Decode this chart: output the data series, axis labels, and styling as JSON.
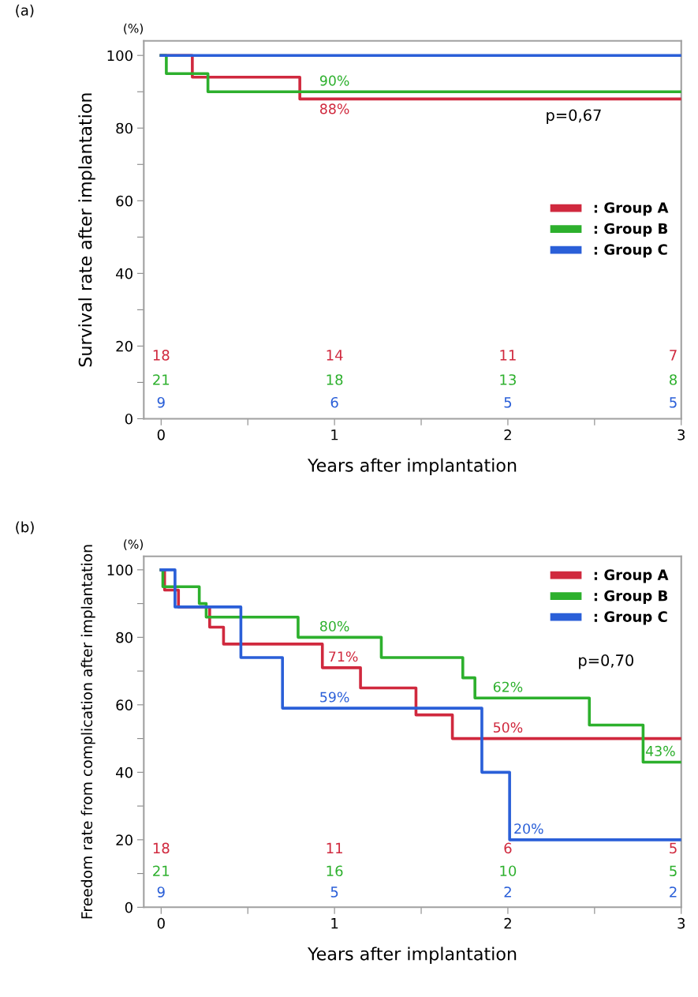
{
  "chart_data": [
    {
      "type": "step",
      "title": "(a)",
      "xlabel": "Years after implantation",
      "ylabel": "Survival rate after implantation",
      "xlim": [
        -0.1,
        3.0
      ],
      "ylim": [
        0,
        104
      ],
      "xticks": [
        0,
        {
          "value": 0.5,
          "label": null
        },
        1,
        {
          "value": 1.5,
          "label": null
        },
        2,
        {
          "value": 2.5,
          "label": null
        },
        3
      ],
      "yticks": [
        0,
        {
          "value": 10,
          "label": null
        },
        20,
        {
          "value": 30,
          "label": null
        },
        40,
        {
          "value": 50,
          "label": null
        },
        60,
        {
          "value": 70,
          "label": null
        },
        80,
        {
          "value": 90,
          "label": null
        },
        100
      ],
      "legend": "center right",
      "grid": false,
      "marker": "none",
      "line_style": "solid",
      "series": [
        {
          "name": ": Group A",
          "color": "#d0293e",
          "x": [
            0,
            0.18,
            0.8,
            1,
            3.0
          ],
          "values": [
            100,
            94,
            88,
            88,
            88
          ],
          "value_labels": [
            null,
            null,
            null,
            "88%",
            null
          ]
        },
        {
          "name": ": Group B",
          "color": "#2db02d",
          "x": [
            0,
            0.03,
            0.27,
            1,
            3.0
          ],
          "values": [
            100,
            95,
            90,
            90,
            90
          ],
          "value_labels": [
            null,
            null,
            null,
            "90%",
            null
          ]
        },
        {
          "name": ": Group C",
          "color": "#2a5fd8",
          "x": [
            0,
            3.0
          ],
          "values": [
            100,
            100
          ],
          "value_labels": [
            null,
            null
          ]
        }
      ],
      "annotations": [
        "(%)",
        "p=0,67",
        "18",
        "14",
        "11",
        "7",
        "21",
        "18",
        "13",
        "8",
        "9",
        "6",
        "5",
        "5"
      ]
    },
    {
      "type": "step",
      "title": "(b)",
      "xlabel": "Years after implantation",
      "ylabel": "Freedom rate from complication after implantation",
      "xlim": [
        -0.1,
        3.0
      ],
      "ylim": [
        0,
        104
      ],
      "xticks": [
        0,
        {
          "value": 0.5,
          "label": null
        },
        1,
        {
          "value": 1.5,
          "label": null
        },
        2,
        {
          "value": 2.5,
          "label": null
        },
        3
      ],
      "yticks": [
        0,
        {
          "value": 10,
          "label": null
        },
        20,
        {
          "value": 30,
          "label": null
        },
        40,
        {
          "value": 50,
          "label": null
        },
        60,
        {
          "value": 70,
          "label": null
        },
        80,
        {
          "value": 90,
          "label": null
        },
        100
      ],
      "legend": "top right",
      "grid": false,
      "marker": "none",
      "line_style": "solid",
      "series": [
        {
          "name": ": Group A",
          "color": "#d0293e",
          "x": [
            0,
            0.02,
            0.1,
            0.28,
            0.36,
            0.93,
            1.05,
            1.15,
            1.47,
            1.68,
            2,
            3.0
          ],
          "values": [
            100,
            94,
            89,
            83,
            78,
            71,
            71,
            65,
            57,
            50,
            50,
            50
          ],
          "value_labels": [
            null,
            null,
            null,
            null,
            null,
            null,
            "71%",
            null,
            null,
            null,
            "50%",
            null
          ]
        },
        {
          "name": ": Group B",
          "color": "#2db02d",
          "x": [
            0,
            0.01,
            0.22,
            0.26,
            0.79,
            1,
            1.27,
            1.74,
            1.81,
            2,
            2.47,
            2.78,
            2.88,
            3.0
          ],
          "values": [
            100,
            95,
            90,
            86,
            80,
            80,
            74,
            68,
            62,
            62,
            54,
            43,
            43,
            43
          ],
          "value_labels": [
            null,
            null,
            null,
            null,
            null,
            "80%",
            null,
            null,
            null,
            "62%",
            null,
            null,
            "43%",
            null
          ]
        },
        {
          "name": ": Group C",
          "color": "#2a5fd8",
          "x": [
            0,
            0.08,
            0.46,
            0.7,
            1,
            1.85,
            2.01,
            2.12,
            3.0
          ],
          "values": [
            100,
            89,
            74,
            59,
            59,
            40,
            20,
            20,
            20
          ],
          "value_labels": [
            null,
            null,
            null,
            null,
            "59%",
            null,
            null,
            "20%",
            null
          ]
        }
      ],
      "annotations": [
        "(%)",
        "p=0,70",
        "18",
        "11",
        "6",
        "5",
        "21",
        "16",
        "10",
        "5",
        "9",
        "5",
        "2",
        "2"
      ]
    }
  ]
}
